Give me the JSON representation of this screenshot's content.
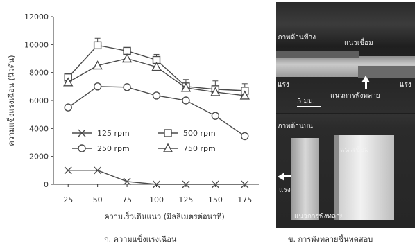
{
  "chart_data": {
    "type": "line",
    "x": [
      25,
      50,
      75,
      100,
      125,
      150,
      175
    ],
    "xticks": [
      "25",
      "50",
      "75",
      "100",
      "125",
      "150",
      "175"
    ],
    "yticks": [
      "0",
      "2000",
      "4000",
      "6000",
      "8000",
      "10000",
      "12000"
    ],
    "ylim": [
      0,
      12000
    ],
    "xlabel": "ความเร็วเดินแนว (มิลลิเมตรต่อนาที)",
    "ylabel": "ความแข็งแรงเฉือน (นิวตัน)",
    "legend_position": "center-left",
    "grid": false,
    "series": [
      {
        "name": "125 rpm",
        "marker": "x",
        "values": [
          1000,
          1000,
          200,
          0,
          0,
          0,
          0
        ]
      },
      {
        "name": "250 rpm",
        "marker": "circle",
        "values": [
          5500,
          7000,
          6950,
          6350,
          6000,
          4900,
          3450
        ]
      },
      {
        "name": "500 rpm",
        "marker": "square",
        "values": [
          7650,
          9950,
          9550,
          8900,
          7000,
          6800,
          6700
        ]
      },
      {
        "name": "750 rpm",
        "marker": "triangle",
        "values": [
          7300,
          8500,
          9000,
          8400,
          6900,
          6600,
          6350
        ]
      }
    ],
    "error_bars": [
      {
        "series": "500 rpm",
        "x": 50,
        "plus": 500
      },
      {
        "series": "500 rpm",
        "x": 100,
        "plus": 400
      },
      {
        "series": "500 rpm",
        "x": 125,
        "plus": 500
      },
      {
        "series": "500 rpm",
        "x": 150,
        "plus": 600
      },
      {
        "series": "500 rpm",
        "x": 175,
        "plus": 500
      }
    ]
  },
  "captions": {
    "a": "ก. ความแข็งแรงเฉือน",
    "b": "ข. การพังทลายชิ้นทดสอบ"
  },
  "photo": {
    "top_panel": {
      "view_label": "ภาพด้านข้าง",
      "weld_label": "แนวเชื่อม",
      "crack_label": "แนวการพังทลาย",
      "left_label": "แรง",
      "right_label": "แรง",
      "scale_label": "5 มม."
    },
    "bottom_panel": {
      "view_label": "ภาพด้านบน",
      "weld_label": "แนวเชื่อม",
      "left_label": "แรง",
      "crack_label": "แนวการพังทลาย"
    }
  },
  "colors": {
    "line": "#4a4a4a",
    "axis": "#333333",
    "photo_text": "#f2f2f2"
  }
}
